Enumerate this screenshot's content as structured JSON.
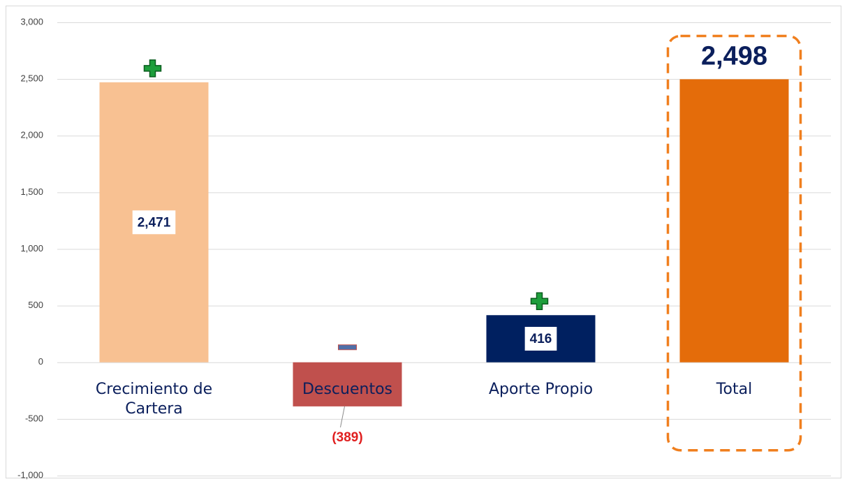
{
  "chart_data": {
    "type": "bar",
    "categories": [
      "Crecimiento de Cartera",
      "Descuentos",
      "Aporte Propio",
      "Total"
    ],
    "values": [
      2471,
      -389,
      416,
      2498
    ],
    "value_labels": [
      "2,471",
      "(389)",
      "416",
      "2,498"
    ],
    "colors": [
      "#f8c192",
      "#c0504d",
      "#002060",
      "#e46c0a"
    ],
    "ylim": [
      -1000,
      3000
    ],
    "yticks": [
      {
        "value": -1000,
        "label": "-1,000"
      },
      -500,
      0,
      500,
      {
        "value": 1000,
        "label": "1,000"
      },
      {
        "value": 1500,
        "label": "1,500"
      },
      {
        "value": 2000,
        "label": "2,000"
      },
      {
        "value": 2500,
        "label": "2,500"
      },
      {
        "value": 3000,
        "label": "3,000"
      }
    ],
    "grid": true
  }
}
